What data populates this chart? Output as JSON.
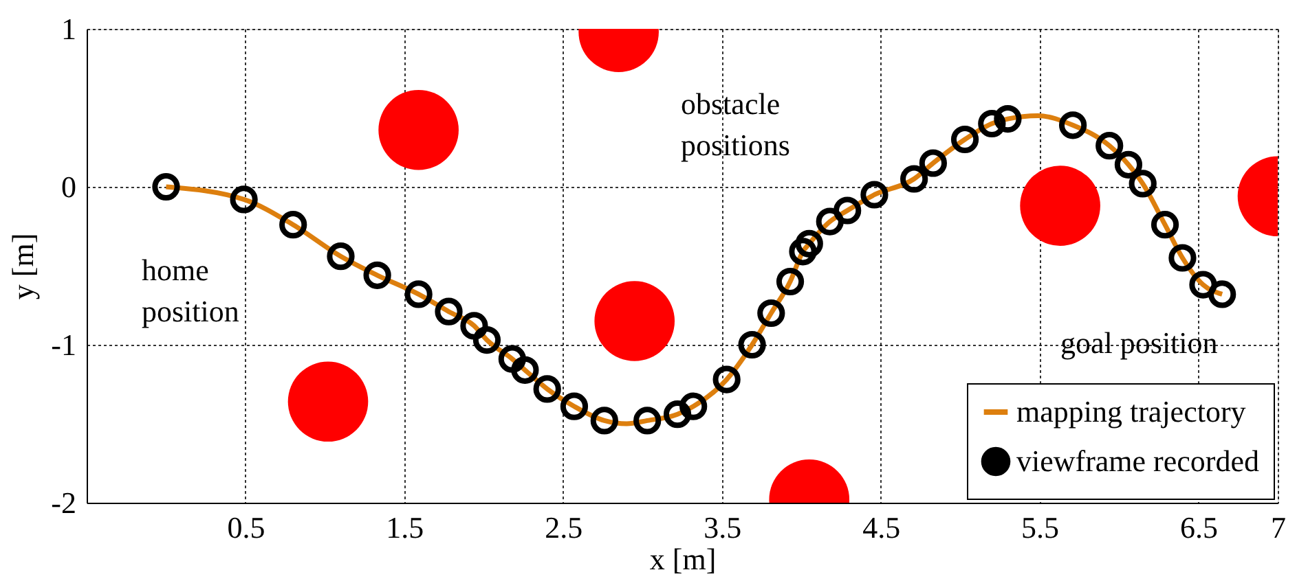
{
  "chart_data": {
    "type": "line",
    "xlabel": "x [m]",
    "ylabel": "y [m]",
    "xlim": [
      -0.5,
      7
    ],
    "ylim": [
      -2,
      1
    ],
    "xticks": [
      0.5,
      1.5,
      2.5,
      3.5,
      4.5,
      5.5,
      6.5,
      7
    ],
    "yticks": [
      -2,
      -1,
      0,
      1
    ],
    "grid": true,
    "legend": "bottom right",
    "series": [
      {
        "name": "mapping trajectory",
        "color": "#dd7f0e",
        "marker": "none",
        "line_style": "solid",
        "x": [
          0,
          0.49,
          0.8,
          1.1,
          1.33,
          1.59,
          1.78,
          1.94,
          2.02,
          2.18,
          2.26,
          2.4,
          2.57,
          2.76,
          2.9,
          3.03,
          3.22,
          3.32,
          3.53,
          3.69,
          3.81,
          3.93,
          4.01,
          4.05,
          4.18,
          4.29,
          4.46,
          4.71,
          4.83,
          5.03,
          5.2,
          5.3,
          5.49,
          5.71,
          5.94,
          6.06,
          6.15,
          6.29,
          6.4,
          6.53,
          6.65
        ],
        "values": [
          0,
          -0.08,
          -0.24,
          -0.44,
          -0.56,
          -0.68,
          -0.79,
          -0.88,
          -0.97,
          -1.09,
          -1.16,
          -1.28,
          -1.39,
          -1.48,
          -1.5,
          -1.48,
          -1.44,
          -1.39,
          -1.22,
          -1.0,
          -0.8,
          -0.6,
          -0.41,
          -0.36,
          -0.22,
          -0.15,
          -0.05,
          0.05,
          0.15,
          0.3,
          0.4,
          0.43,
          0.45,
          0.39,
          0.26,
          0.14,
          0.02,
          -0.24,
          -0.45,
          -0.62,
          -0.68
        ]
      },
      {
        "name": "viewframe recorded",
        "type": "scatter",
        "color": "#000000",
        "marker": "circle",
        "x": [
          0,
          0.49,
          0.8,
          1.1,
          1.33,
          1.59,
          1.78,
          1.94,
          2.02,
          2.18,
          2.26,
          2.4,
          2.57,
          2.76,
          3.03,
          3.22,
          3.32,
          3.53,
          3.69,
          3.81,
          3.93,
          4.01,
          4.05,
          4.18,
          4.29,
          4.46,
          4.71,
          4.83,
          5.03,
          5.2,
          5.3,
          5.71,
          5.94,
          6.06,
          6.15,
          6.29,
          6.4,
          6.53,
          6.65
        ],
        "values": [
          0,
          -0.08,
          -0.24,
          -0.44,
          -0.56,
          -0.68,
          -0.79,
          -0.88,
          -0.97,
          -1.09,
          -1.16,
          -1.28,
          -1.39,
          -1.48,
          -1.48,
          -1.44,
          -1.39,
          -1.22,
          -1.0,
          -0.8,
          -0.6,
          -0.41,
          -0.36,
          -0.22,
          -0.15,
          -0.05,
          0.05,
          0.15,
          0.3,
          0.4,
          0.43,
          0.39,
          0.26,
          0.14,
          0.02,
          -0.24,
          -0.45,
          -0.62,
          -0.68
        ]
      },
      {
        "type": "bubble",
        "color": "#ff0000",
        "marker": "circle",
        "x": [
          1.59,
          2.95,
          1.02,
          2.85,
          4.05,
          5.63,
          7.0
        ],
        "values": [
          0.36,
          -0.85,
          -1.36,
          0.98,
          -1.98,
          -0.12,
          -0.06
        ],
        "sizes": [
          1,
          1,
          1,
          1,
          1,
          1,
          1
        ]
      }
    ],
    "annotations": [
      "obstacle\npositions",
      "home\nposition",
      "goal position"
    ]
  }
}
